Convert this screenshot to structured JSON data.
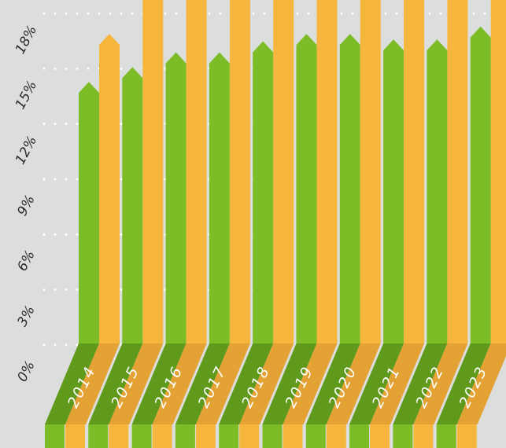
{
  "chart_data": {
    "type": "bar",
    "title": "",
    "xlabel": "",
    "ylabel": "",
    "categories": [
      "2014",
      "2015",
      "2016",
      "2017",
      "2018",
      "2019",
      "2020",
      "2021",
      "2022",
      "2023"
    ],
    "y_ticks": [
      "0%",
      "3%",
      "6%",
      "9%",
      "12%",
      "15%",
      "18%"
    ],
    "ylim": [
      0,
      20
    ],
    "grid": "dotted",
    "series": [
      {
        "values": [
          14.2,
          15.0,
          15.8,
          15.8,
          16.4,
          16.8,
          16.8,
          16.5,
          16.5,
          17.2
        ]
      },
      {
        "values": [
          16.8,
          20,
          20,
          20,
          20,
          20,
          20,
          20,
          20,
          20
        ]
      }
    ],
    "colors": {
      "series": [
        "#7cbd27",
        "#f6b53d"
      ],
      "category_band": [
        "#5f9a1c",
        "#e3a233"
      ],
      "background": "#dcdedd",
      "grid": "#ffffff"
    }
  }
}
